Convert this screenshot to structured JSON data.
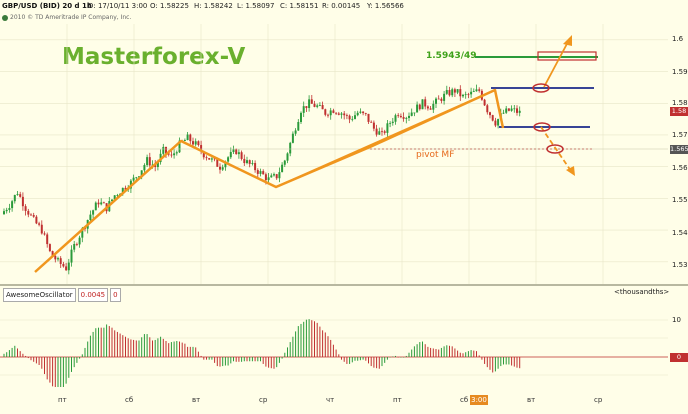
{
  "header": {
    "symbol": "GBP/USD (BID) 20 d 1h",
    "date": "D: 17/10/11 3:00",
    "open": "O: 1.58225",
    "high": "H: 1.58242",
    "low": "L: 1.58097",
    "close": "C: 1.58151",
    "range": "R: 0.00145",
    "y": "Y: 1.56566"
  },
  "copyright": "2010 © TD Ameritrade IP Company, Inc.",
  "watermark": "Masterforex-V",
  "price_axis": {
    "labels": [
      "1.6",
      "1.59",
      "1.58",
      "1.57",
      "1.56",
      "1.55",
      "1.54",
      "1.53"
    ],
    "current_tag": "1.58",
    "pivot_tag": "1.565"
  },
  "annotations": {
    "level_label": "1.5943/49",
    "pivot_label": "pivot MF"
  },
  "indicator": {
    "name": "AwesomeOscillator",
    "value": "0.0045",
    "param": "0",
    "units": "<thousandths>",
    "axis_label": "10",
    "zero_tag": "0"
  },
  "time_axis": {
    "labels": [
      "пт",
      "сб",
      "вт",
      "ср",
      "чт",
      "пт",
      "сб",
      "вт",
      "ср"
    ],
    "cursor": "3:00"
  },
  "colors": {
    "background": "#fffee8",
    "bull": "#2a9a3a",
    "bear": "#c03030",
    "trend": "#f0961e",
    "level": "#1c2a8a",
    "target": "#2a9a3a",
    "pivot": "#c03030"
  },
  "chart_data": {
    "type": "candlestick",
    "symbol": "GBP/USD",
    "ylim": [
      1.523,
      1.605
    ],
    "price_points": [
      [
        0,
        1.545
      ],
      [
        3,
        1.548
      ],
      [
        6,
        1.552
      ],
      [
        9,
        1.547
      ],
      [
        12,
        1.543
      ],
      [
        15,
        1.54
      ],
      [
        18,
        1.533
      ],
      [
        21,
        1.53
      ],
      [
        24,
        1.528
      ],
      [
        27,
        1.535
      ],
      [
        30,
        1.54
      ],
      [
        33,
        1.545
      ],
      [
        36,
        1.549
      ],
      [
        39,
        1.547
      ],
      [
        42,
        1.551
      ],
      [
        45,
        1.553
      ],
      [
        48,
        1.555
      ],
      [
        51,
        1.558
      ],
      [
        54,
        1.562
      ],
      [
        57,
        1.56
      ],
      [
        60,
        1.565
      ],
      [
        63,
        1.563
      ],
      [
        66,
        1.567
      ],
      [
        69,
        1.569
      ],
      [
        72,
        1.567
      ],
      [
        75,
        1.564
      ],
      [
        78,
        1.562
      ],
      [
        81,
        1.56
      ],
      [
        84,
        1.563
      ],
      [
        87,
        1.565
      ],
      [
        90,
        1.562
      ],
      [
        93,
        1.56
      ],
      [
        96,
        1.558
      ],
      [
        99,
        1.556
      ],
      [
        102,
        1.557
      ],
      [
        105,
        1.562
      ],
      [
        108,
        1.57
      ],
      [
        111,
        1.578
      ],
      [
        114,
        1.58
      ],
      [
        117,
        1.579
      ],
      [
        120,
        1.577
      ],
      [
        123,
        1.578
      ],
      [
        126,
        1.577
      ],
      [
        129,
        1.575
      ],
      [
        132,
        1.577
      ],
      [
        135,
        1.576
      ],
      [
        138,
        1.572
      ],
      [
        141,
        1.57
      ],
      [
        144,
        1.574
      ],
      [
        147,
        1.577
      ],
      [
        150,
        1.576
      ],
      [
        153,
        1.578
      ],
      [
        156,
        1.58
      ],
      [
        159,
        1.579
      ],
      [
        162,
        1.581
      ],
      [
        165,
        1.583
      ],
      [
        168,
        1.584
      ],
      [
        171,
        1.582
      ],
      [
        174,
        1.583
      ],
      [
        177,
        1.584
      ],
      [
        180,
        1.578
      ],
      [
        183,
        1.574
      ],
      [
        186,
        1.577
      ],
      [
        189,
        1.578
      ],
      [
        192,
        1.577
      ]
    ],
    "oscillator": {
      "zero": 0,
      "max_label": 10
    }
  }
}
